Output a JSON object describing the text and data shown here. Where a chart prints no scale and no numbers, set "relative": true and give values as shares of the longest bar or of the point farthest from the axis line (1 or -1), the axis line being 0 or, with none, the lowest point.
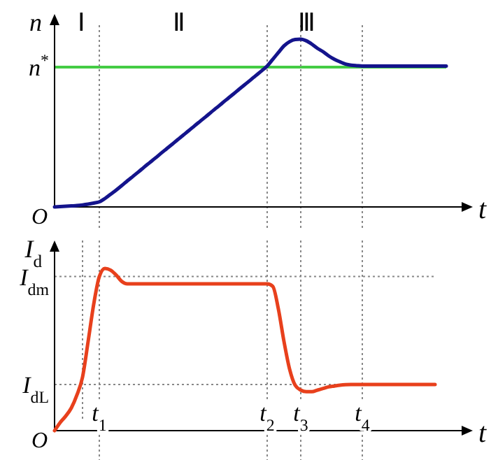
{
  "chart_data": [
    {
      "type": "line",
      "relative": true,
      "ylabel": "n",
      "xlabel": "t",
      "tick_labels": false,
      "categories": [
        null,
        null,
        null,
        null,
        null,
        null,
        null,
        null,
        "t$_{1}$",
        null,
        null,
        null,
        null,
        null,
        null,
        null,
        null,
        null,
        null,
        null,
        null,
        null,
        null,
        null,
        null,
        null,
        null,
        null,
        null,
        null,
        null,
        null,
        null,
        null,
        null,
        null,
        null,
        null,
        "t$_{2}$",
        null,
        null,
        null,
        null,
        null,
        "t$_{3}$",
        null,
        null,
        null,
        null,
        null,
        null,
        null,
        null,
        null,
        null,
        "t$_{4}$",
        null,
        null,
        null,
        null,
        null,
        null,
        null,
        null,
        null,
        null,
        null,
        null,
        null,
        null,
        null
      ],
      "series": [
        {
          "color": "#14148c",
          "values": [
            0,
            0.002,
            0.004,
            0.006,
            0.008,
            0.012,
            0.017,
            0.023,
            0.03,
            0.05,
            0.075,
            0.1,
            0.127,
            0.155,
            0.182,
            0.209,
            0.237,
            0.264,
            0.291,
            0.319,
            0.346,
            0.373,
            0.401,
            0.428,
            0.455,
            0.483,
            0.51,
            0.537,
            0.565,
            0.592,
            0.62,
            0.647,
            0.674,
            0.702,
            0.729,
            0.756,
            0.784,
            0.811,
            0.84,
            0.88,
            0.92,
            0.96,
            0.985,
            0.998,
            1,
            0.99,
            0.97,
            0.945,
            0.925,
            0.9,
            0.88,
            0.865,
            0.852,
            0.845,
            0.842,
            0.84,
            0.84,
            0.84,
            0.84,
            0.84,
            0.84,
            0.84,
            0.84,
            0.84,
            0.84,
            0.84,
            0.84,
            0.84,
            0.84,
            0.84,
            0.84
          ]
        }
      ],
      "ref_lines": [
        {
          "axis": "y",
          "value": 0.833,
          "label": "n$^{*}$",
          "color": "#44cc44",
          "line_style": "solid"
        },
        {
          "axis": "x",
          "value": "t$_{1}$",
          "line_style": "dotted"
        },
        {
          "axis": "x",
          "value": "t$_{2}$",
          "line_style": "dotted"
        },
        {
          "axis": "x",
          "value": "t$_{3}$",
          "line_style": "dotted"
        },
        {
          "axis": "x",
          "value": "t$_{4}$",
          "line_style": "dotted"
        }
      ],
      "annotations": [
        "Ⅰ",
        "Ⅱ",
        "Ⅲ",
        "O"
      ]
    },
    {
      "type": "line",
      "relative": true,
      "ylabel": "I$_{d}$",
      "xlabel": "t",
      "grid": "x",
      "categories": [
        null,
        null,
        null,
        null,
        null,
        null,
        null,
        null,
        "t$_{1}$",
        null,
        null,
        null,
        null,
        null,
        null,
        null,
        null,
        null,
        null,
        null,
        null,
        null,
        null,
        null,
        null,
        null,
        null,
        null,
        null,
        null,
        null,
        null,
        null,
        null,
        null,
        null,
        null,
        null,
        "t$_{2}$",
        null,
        null,
        null,
        null,
        null,
        "t$_{3}$",
        null,
        null,
        null,
        null,
        null,
        null,
        null,
        null,
        null,
        null,
        "t$_{4}$",
        null,
        null,
        null,
        null,
        null,
        null,
        null,
        null,
        null,
        null,
        null,
        null,
        null,
        null,
        null
      ],
      "series": [
        {
          "color": "#e8401c",
          "values": [
            0,
            0.05,
            0.09,
            0.14,
            0.22,
            0.33,
            0.55,
            0.78,
            0.95,
            1,
            0.99,
            0.96,
            0.92,
            0.905,
            0.905,
            0.905,
            0.905,
            0.905,
            0.905,
            0.905,
            0.905,
            0.905,
            0.905,
            0.905,
            0.905,
            0.905,
            0.905,
            0.905,
            0.905,
            0.905,
            0.905,
            0.905,
            0.905,
            0.905,
            0.905,
            0.905,
            0.905,
            0.905,
            0.905,
            0.89,
            0.75,
            0.55,
            0.38,
            0.28,
            0.25,
            0.24,
            0.24,
            0.25,
            0.26,
            0.27,
            0.275,
            0.28,
            0.283,
            0.284,
            0.284,
            0.284,
            0.284,
            0.284,
            0.284,
            0.284,
            0.284,
            0.284,
            0.284,
            0.284,
            0.284,
            0.284,
            0.284,
            0.284,
            0.284,
            null,
            null
          ]
        }
      ],
      "ref_lines": [
        {
          "axis": "y",
          "value": 0.95,
          "label": "I$_{dm}$",
          "line_style": "dotted"
        },
        {
          "axis": "y",
          "value": 0.284,
          "label": "I$_{dL}$",
          "line_style": "dotted"
        }
      ],
      "annotations": [
        "O"
      ]
    }
  ]
}
